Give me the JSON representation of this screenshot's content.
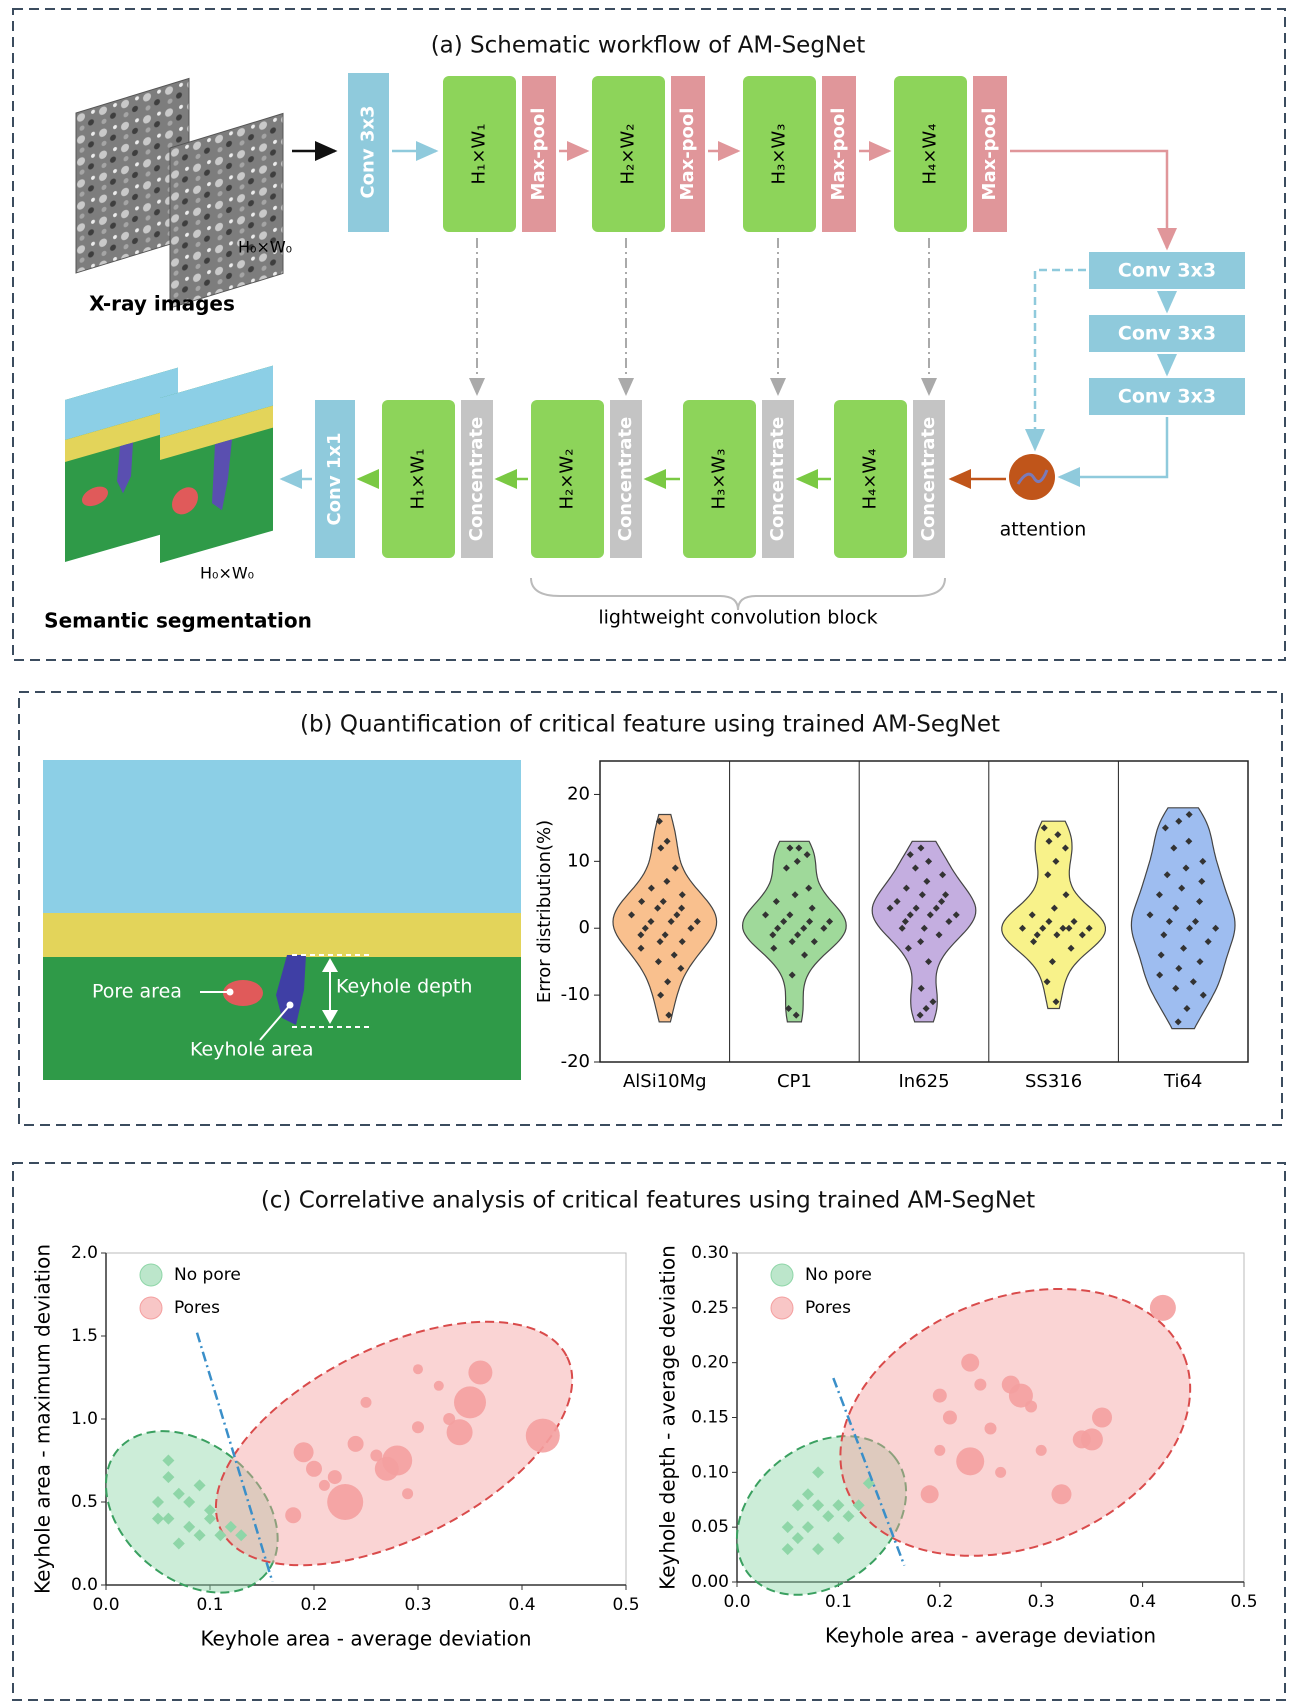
{
  "panel_a": {
    "title": "(a) Schematic workflow of AM-SegNet",
    "input_label": "X-ray images",
    "input_size": "H₀×W₀",
    "output_label": "Semantic segmentation",
    "output_size": "H₀×W₀",
    "conv_in": "Conv 3x3",
    "conv_out": "Conv 1x1",
    "encoder": [
      {
        "size": "H₁×W₁",
        "pool": "Max-pool"
      },
      {
        "size": "H₂×W₂",
        "pool": "Max-pool"
      },
      {
        "size": "H₃×W₃",
        "pool": "Max-pool"
      },
      {
        "size": "H₄×W₄",
        "pool": "Max-pool"
      }
    ],
    "bottleneck": [
      "Conv 3x3",
      "Conv 3x3",
      "Conv 3x3"
    ],
    "attention": "attention",
    "decoder": [
      {
        "size": "H₁×W₁",
        "concat": "Concentrate"
      },
      {
        "size": "H₂×W₂",
        "concat": "Concentrate"
      },
      {
        "size": "H₃×W₃",
        "concat": "Concentrate"
      },
      {
        "size": "H₄×W₄",
        "concat": "Concentrate"
      }
    ],
    "block_label": "lightweight convolution block"
  },
  "panel_b": {
    "title": "(b) Quantification of critical feature using trained AM-SegNet",
    "image_labels": {
      "pore": "Pore area",
      "depth": "Keyhole depth",
      "keyhole": "Keyhole area"
    }
  },
  "panel_c": {
    "title": "(c) Correlative analysis of critical features using trained AM-SegNet"
  },
  "chart_data": [
    {
      "type": "violin",
      "ylabel": "Error distribution(%)",
      "categories": [
        "AlSi10Mg",
        "CP1",
        "In625",
        "SS316",
        "Ti64"
      ],
      "colors": [
        "#f9c08e",
        "#9fd99a",
        "#c4aee0",
        "#f8f28a",
        "#9ebdf0"
      ],
      "values": [
        [
          16,
          13,
          12,
          9,
          7,
          6,
          5,
          4,
          4,
          3,
          3,
          2,
          2,
          1,
          1,
          1,
          0,
          0,
          -1,
          -1,
          -2,
          -2,
          -3,
          -4,
          -5,
          -6,
          -8,
          -10,
          -13
        ],
        [
          12,
          12,
          11,
          10,
          9,
          6,
          5,
          4,
          3,
          2,
          2,
          1,
          1,
          1,
          0,
          0,
          0,
          -1,
          -1,
          -2,
          -2,
          -3,
          -4,
          -7,
          -12,
          -13
        ],
        [
          12,
          11,
          10,
          9,
          8,
          7,
          6,
          5,
          5,
          4,
          4,
          3,
          3,
          3,
          2,
          2,
          2,
          1,
          1,
          0,
          0,
          -1,
          -2,
          -3,
          -5,
          -9,
          -11,
          -12,
          -13
        ],
        [
          15,
          14,
          13,
          12,
          10,
          8,
          5,
          3,
          2,
          1,
          1,
          0,
          0,
          0,
          0,
          0,
          -1,
          -1,
          -1,
          -2,
          -3,
          -5,
          -8,
          -11
        ],
        [
          17,
          16,
          15,
          13,
          12,
          10,
          9,
          8,
          7,
          6,
          5,
          4,
          3,
          2,
          1,
          1,
          0,
          0,
          -1,
          -2,
          -3,
          -4,
          -5,
          -6,
          -7,
          -8,
          -9,
          -10,
          -12,
          -14
        ]
      ],
      "ylim": [
        -20,
        25
      ],
      "yticks": [
        -20,
        -10,
        0,
        10,
        20
      ]
    },
    {
      "type": "scatter",
      "xlabel": "Keyhole area - average deviation",
      "ylabel": "Keyhole area - maximum deviation",
      "xlim": [
        0,
        0.5
      ],
      "ylim": [
        0,
        2
      ],
      "xticks": [
        {
          "value": 0,
          "label": "0.0"
        },
        0.1,
        0.2,
        0.3,
        0.4,
        0.5
      ],
      "yticks": [
        {
          "value": 0,
          "label": "0.0"
        },
        0.5,
        {
          "value": 1,
          "label": "1.0"
        },
        1.5,
        {
          "value": 2,
          "label": "2.0"
        }
      ],
      "legend": "upper left",
      "series": [
        {
          "name": "No pore",
          "color": "#8fd6a8",
          "marker": "diamond",
          "x": [
            0.06,
            0.06,
            0.07,
            0.05,
            0.08,
            0.09,
            0.1,
            0.06,
            0.08,
            0.1,
            0.12,
            0.11,
            0.13,
            0.07,
            0.09,
            0.05
          ],
          "y": [
            0.75,
            0.65,
            0.55,
            0.5,
            0.5,
            0.6,
            0.45,
            0.4,
            0.35,
            0.4,
            0.35,
            0.3,
            0.3,
            0.25,
            0.3,
            0.4
          ]
        },
        {
          "name": "Pores",
          "color": "#f4a0a0",
          "marker": "circle",
          "x": [
            0.36,
            0.35,
            0.34,
            0.42,
            0.28,
            0.27,
            0.23,
            0.19,
            0.2,
            0.22,
            0.24,
            0.3,
            0.25,
            0.32,
            0.29,
            0.18,
            0.21,
            0.33,
            0.26,
            0.3
          ],
          "y": [
            1.28,
            1.1,
            0.92,
            0.9,
            0.75,
            0.7,
            0.5,
            0.8,
            0.7,
            0.65,
            0.85,
            0.95,
            1.1,
            1.2,
            0.55,
            0.42,
            0.6,
            1.0,
            0.78,
            1.3
          ],
          "sizes": [
            18,
            26,
            20,
            28,
            24,
            18,
            30,
            14,
            10,
            8,
            10,
            6,
            5,
            4,
            5,
            10,
            5,
            6,
            6,
            4
          ]
        }
      ]
    },
    {
      "type": "scatter",
      "xlabel": "Keyhole area - average deviation",
      "ylabel": "Keyhole depth - average deviation",
      "xlim": [
        0,
        0.5
      ],
      "ylim": [
        0,
        0.3
      ],
      "xticks": [
        {
          "value": 0,
          "label": "0.0"
        },
        0.1,
        0.2,
        0.3,
        0.4,
        0.5
      ],
      "yticks": [
        {
          "value": 0,
          "label": "0.00"
        },
        0.05,
        {
          "value": 0.1,
          "label": "0.10"
        },
        0.15,
        {
          "value": 0.2,
          "label": "0.20"
        },
        0.25,
        {
          "value": 0.3,
          "label": "0.30"
        }
      ],
      "legend": "upper left",
      "series": [
        {
          "name": "No pore",
          "color": "#8fd6a8",
          "marker": "diamond",
          "x": [
            0.08,
            0.07,
            0.06,
            0.08,
            0.05,
            0.07,
            0.09,
            0.1,
            0.11,
            0.12,
            0.06,
            0.1,
            0.05,
            0.08,
            0.13
          ],
          "y": [
            0.1,
            0.08,
            0.07,
            0.07,
            0.05,
            0.05,
            0.06,
            0.07,
            0.06,
            0.07,
            0.04,
            0.04,
            0.03,
            0.03,
            0.09
          ]
        },
        {
          "name": "Pores",
          "color": "#f4a0a0",
          "marker": "circle",
          "x": [
            0.42,
            0.28,
            0.27,
            0.23,
            0.23,
            0.35,
            0.34,
            0.36,
            0.32,
            0.2,
            0.19,
            0.21,
            0.25,
            0.24,
            0.3,
            0.26,
            0.2,
            0.29
          ],
          "y": [
            0.25,
            0.17,
            0.18,
            0.2,
            0.11,
            0.13,
            0.13,
            0.15,
            0.08,
            0.17,
            0.08,
            0.15,
            0.14,
            0.18,
            0.12,
            0.1,
            0.12,
            0.16
          ],
          "sizes": [
            20,
            18,
            12,
            12,
            22,
            16,
            12,
            14,
            14,
            8,
            12,
            8,
            6,
            6,
            5,
            5,
            5,
            6
          ]
        }
      ]
    }
  ]
}
